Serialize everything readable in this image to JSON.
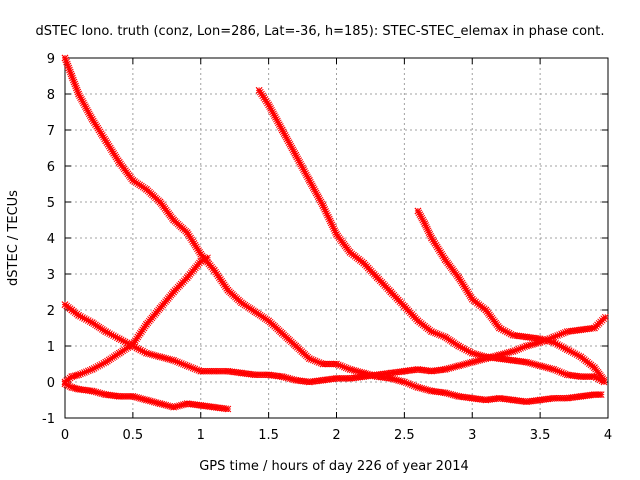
{
  "chart_data": {
    "type": "scatter",
    "title": "dSTEC Iono. truth (conz, Lon=286, Lat=-36, h=185): STEC-STEC_elemax in phase cont.",
    "xlabel": "GPS time / hours of day 226 of year 2014",
    "ylabel": "dSTEC  / TECUs",
    "xlim": [
      0,
      4
    ],
    "ylim": [
      -1,
      9
    ],
    "xticks": [
      "0",
      "0.5",
      "1",
      "1.5",
      "2",
      "2.5",
      "3",
      "3.5",
      "4"
    ],
    "yticks": [
      "-1",
      "0",
      "1",
      "2",
      "3",
      "4",
      "5",
      "6",
      "7",
      "8",
      "9"
    ],
    "grid": true,
    "legend": "none",
    "marker": "cross-plus",
    "colors": {
      "series": "#ff0000",
      "grid": "#a0a0a0",
      "axis": "#000000"
    },
    "series": [
      {
        "x": [
          0.0,
          0.05,
          0.1,
          0.2,
          0.3,
          0.4,
          0.5,
          0.6,
          0.7,
          0.8,
          0.9,
          1.0,
          1.1,
          1.2,
          1.3,
          1.4,
          1.5,
          1.6,
          1.7,
          1.8,
          1.9,
          2.0,
          2.1,
          2.2,
          2.3,
          2.4,
          2.5,
          2.6,
          2.7,
          2.8,
          2.9,
          3.0,
          3.1,
          3.2,
          3.3,
          3.4,
          3.5,
          3.6,
          3.7,
          3.8,
          3.9,
          3.95
        ],
        "y": [
          9.0,
          8.5,
          8.0,
          7.3,
          6.7,
          6.1,
          5.6,
          5.35,
          5.0,
          4.5,
          4.15,
          3.55,
          3.1,
          2.55,
          2.2,
          1.95,
          1.7,
          1.35,
          1.0,
          0.65,
          0.5,
          0.5,
          0.35,
          0.25,
          0.15,
          0.1,
          0.0,
          -0.15,
          -0.25,
          -0.3,
          -0.4,
          -0.45,
          -0.5,
          -0.45,
          -0.5,
          -0.55,
          -0.5,
          -0.45,
          -0.45,
          -0.4,
          -0.35,
          -0.35
        ]
      },
      {
        "x": [
          0.0,
          0.05,
          0.1,
          0.2,
          0.3,
          0.4,
          0.5,
          0.6,
          0.7,
          0.8,
          0.9,
          1.0,
          1.1,
          1.2,
          1.3,
          1.4,
          1.5,
          1.6,
          1.7,
          1.8,
          1.9,
          2.0,
          2.1,
          2.2,
          2.3,
          2.4,
          2.5,
          2.6,
          2.7,
          2.8,
          2.9,
          3.0,
          3.1,
          3.2,
          3.3,
          3.4,
          3.5,
          3.6,
          3.7,
          3.8,
          3.9,
          3.98
        ],
        "y": [
          2.15,
          2.0,
          1.85,
          1.65,
          1.4,
          1.2,
          1.0,
          0.8,
          0.7,
          0.6,
          0.45,
          0.3,
          0.3,
          0.3,
          0.25,
          0.2,
          0.2,
          0.15,
          0.05,
          0.0,
          0.05,
          0.1,
          0.1,
          0.15,
          0.2,
          0.25,
          0.3,
          0.35,
          0.3,
          0.35,
          0.45,
          0.55,
          0.65,
          0.75,
          0.85,
          1.0,
          1.1,
          1.25,
          1.4,
          1.45,
          1.5,
          1.8
        ]
      },
      {
        "x": [
          0.0,
          0.05,
          0.1,
          0.2,
          0.3,
          0.4,
          0.5,
          0.6,
          0.7,
          0.8,
          0.9,
          1.0,
          1.05
        ],
        "y": [
          0.0,
          0.15,
          0.2,
          0.35,
          0.55,
          0.8,
          1.05,
          1.6,
          2.05,
          2.5,
          2.9,
          3.35,
          3.45
        ]
      },
      {
        "x": [
          0.0,
          0.05,
          0.1,
          0.2,
          0.3,
          0.4,
          0.5,
          0.6,
          0.7,
          0.8,
          0.9,
          1.0,
          1.1,
          1.2
        ],
        "y": [
          -0.05,
          -0.15,
          -0.2,
          -0.25,
          -0.35,
          -0.4,
          -0.4,
          -0.5,
          -0.6,
          -0.7,
          -0.6,
          -0.65,
          -0.7,
          -0.75
        ]
      },
      {
        "x": [
          1.43,
          1.5,
          1.6,
          1.7,
          1.8,
          1.9,
          2.0,
          2.1,
          2.2,
          2.3,
          2.4,
          2.5,
          2.6,
          2.7,
          2.8,
          2.9,
          3.0,
          3.1,
          3.2,
          3.3,
          3.4,
          3.5,
          3.6,
          3.7,
          3.8,
          3.9,
          3.97
        ],
        "y": [
          8.1,
          7.7,
          7.0,
          6.3,
          5.6,
          4.9,
          4.1,
          3.6,
          3.3,
          2.9,
          2.5,
          2.1,
          1.7,
          1.4,
          1.25,
          1.0,
          0.8,
          0.7,
          0.65,
          0.6,
          0.55,
          0.45,
          0.35,
          0.2,
          0.15,
          0.15,
          0.0
        ]
      },
      {
        "x": [
          2.6,
          2.65,
          2.7,
          2.8,
          2.9,
          3.0,
          3.1,
          3.2,
          3.3,
          3.4,
          3.5,
          3.6,
          3.7,
          3.8,
          3.9,
          3.97
        ],
        "y": [
          4.75,
          4.4,
          4.0,
          3.4,
          2.9,
          2.3,
          2.0,
          1.5,
          1.3,
          1.25,
          1.2,
          1.1,
          0.9,
          0.7,
          0.4,
          0.05
        ]
      }
    ]
  }
}
